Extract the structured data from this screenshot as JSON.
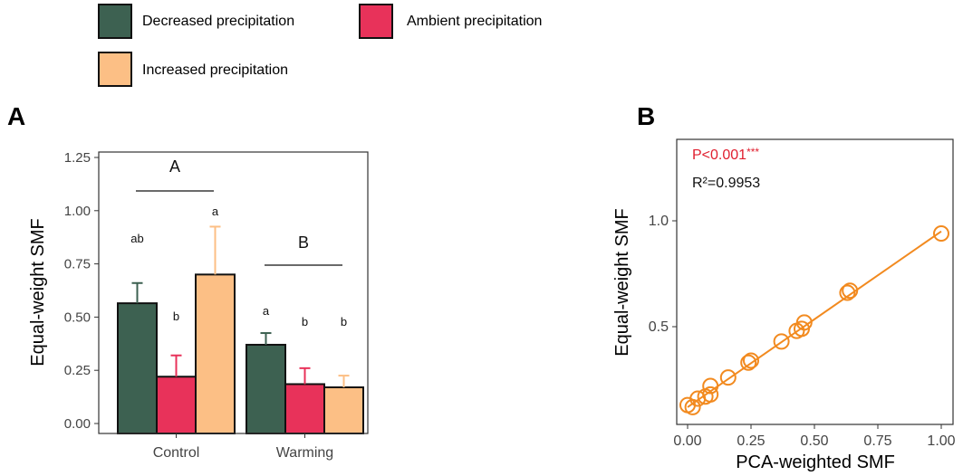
{
  "legend": {
    "items": [
      {
        "label": "Decreased precipitation",
        "color": "#3d6151"
      },
      {
        "label": "Ambient precipitation",
        "color": "#e8325a"
      },
      {
        "label": "Increased precipitation",
        "color": "#fcbf85"
      }
    ]
  },
  "panel_labels": {
    "a": "A",
    "b": "B"
  },
  "chart_data": [
    {
      "type": "bar",
      "panel": "A",
      "ylabel": "Equal-weight SMF",
      "ylim": [
        0,
        1.25
      ],
      "yticks": [
        "0.00",
        "0.25",
        "0.50",
        "0.75",
        "1.00",
        "1.25"
      ],
      "categories": [
        "Control",
        "Warming"
      ],
      "series": [
        {
          "name": "Decreased precipitation",
          "color": "#3d6151",
          "values": [
            0.565,
            0.37
          ],
          "errors": [
            0.095,
            0.055
          ],
          "letters": [
            "ab",
            "a"
          ]
        },
        {
          "name": "Ambient precipitation",
          "color": "#e8325a",
          "values": [
            0.22,
            0.185
          ],
          "errors": [
            0.1,
            0.075
          ],
          "letters": [
            "b",
            "b"
          ]
        },
        {
          "name": "Increased precipitation",
          "color": "#fcbf85",
          "values": [
            0.7,
            0.17
          ],
          "errors": [
            0.225,
            0.055
          ],
          "letters": [
            "a",
            "b"
          ]
        }
      ],
      "group_labels": [
        {
          "category": "Control",
          "label": "A"
        },
        {
          "category": "Warming",
          "label": "B"
        }
      ]
    },
    {
      "type": "scatter",
      "panel": "B",
      "xlabel": "PCA-weighted SMF",
      "ylabel": "Equal-weight SMF",
      "xlim": [
        0,
        1
      ],
      "ylim": [
        0.1,
        1.1
      ],
      "xticks": [
        "0.00",
        "0.25",
        "0.50",
        "0.75",
        "1.00"
      ],
      "yticks": [
        "0.5",
        "1.0"
      ],
      "color": "#f28a1f",
      "annotations": {
        "p": "P<0.001",
        "stars": "***",
        "r2": "R²=0.9953"
      },
      "points": [
        {
          "x": 0.0,
          "y": 0.13
        },
        {
          "x": 0.02,
          "y": 0.12
        },
        {
          "x": 0.04,
          "y": 0.16
        },
        {
          "x": 0.07,
          "y": 0.17
        },
        {
          "x": 0.09,
          "y": 0.18
        },
        {
          "x": 0.09,
          "y": 0.22
        },
        {
          "x": 0.16,
          "y": 0.26
        },
        {
          "x": 0.24,
          "y": 0.33
        },
        {
          "x": 0.25,
          "y": 0.34
        },
        {
          "x": 0.37,
          "y": 0.43
        },
        {
          "x": 0.43,
          "y": 0.48
        },
        {
          "x": 0.45,
          "y": 0.49
        },
        {
          "x": 0.46,
          "y": 0.52
        },
        {
          "x": 0.63,
          "y": 0.66
        },
        {
          "x": 0.64,
          "y": 0.67
        },
        {
          "x": 1.0,
          "y": 0.94
        }
      ],
      "fit": {
        "x": [
          0.0,
          1.0
        ],
        "y": [
          0.12,
          0.95
        ]
      }
    }
  ]
}
